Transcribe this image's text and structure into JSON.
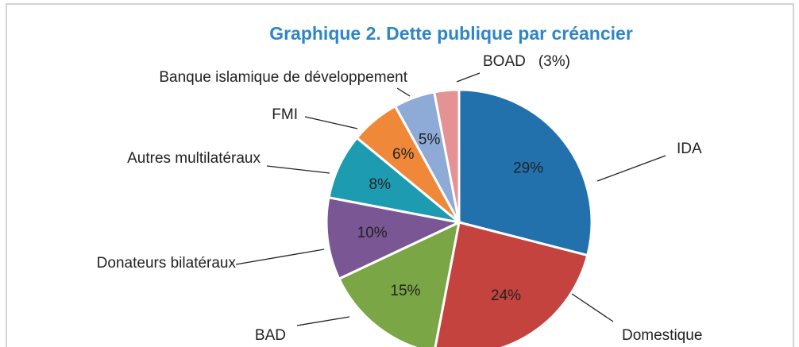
{
  "chart_data": {
    "type": "pie",
    "title": "Graphique 2. Dette publique par créancier",
    "categories": [
      "IDA",
      "Domestique",
      "BAD",
      "Donateurs bilatéraux",
      "Autres multilatéraux",
      "FMI",
      "Banque islamique de développement",
      "BOAD"
    ],
    "values": [
      29,
      24,
      15,
      10,
      8,
      6,
      5,
      3
    ],
    "value_labels": [
      "29%",
      "24%",
      "15%",
      "10%",
      "8%",
      "6%",
      "5%",
      "(3%)"
    ],
    "colors": [
      "#2271ad",
      "#c4433f",
      "#7aa645",
      "#7a5694",
      "#1d9bb0",
      "#f0883a",
      "#8eaad6",
      "#e59294"
    ]
  }
}
